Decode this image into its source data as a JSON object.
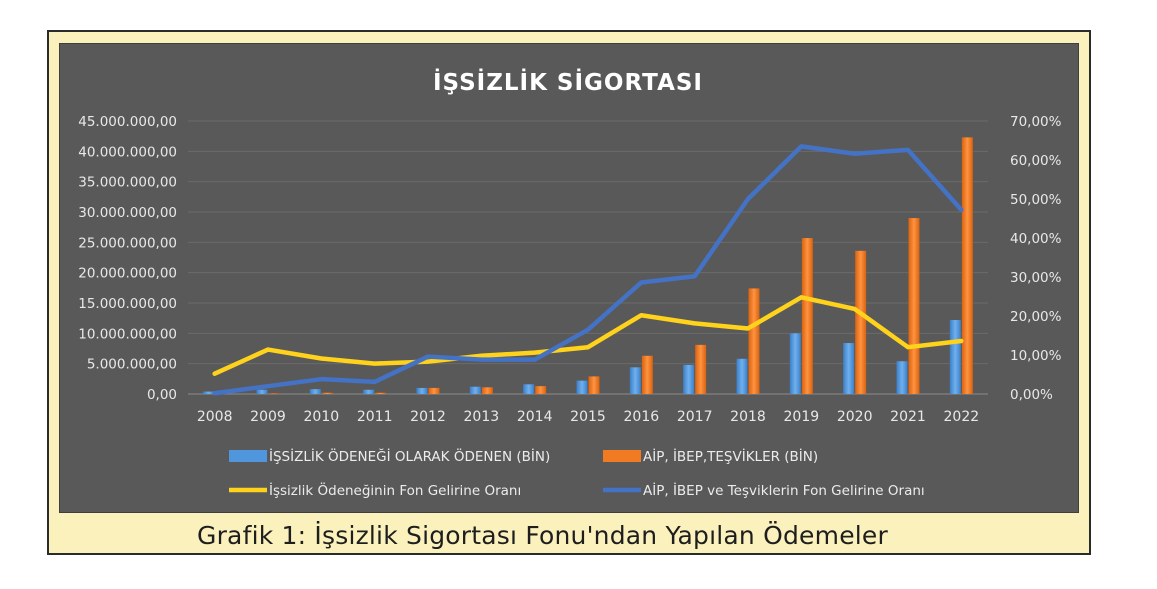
{
  "caption": "Grafik 1: İşsizlik Sigortası Fonu'ndan Yapılan Ödemeler",
  "chart_data": {
    "type": "bar",
    "title": "İŞSİZLİK SİGORTASI",
    "categories": [
      "2008",
      "2009",
      "2010",
      "2011",
      "2012",
      "2013",
      "2014",
      "2015",
      "2016",
      "2017",
      "2018",
      "2019",
      "2020",
      "2021",
      "2022"
    ],
    "y_left": {
      "ylim": [
        0,
        45000000
      ],
      "ticks": [
        "0,00",
        "5.000.000,00",
        "10.000.000,00",
        "15.000.000,00",
        "20.000.000,00",
        "25.000.000,00",
        "30.000.000,00",
        "35.000.000,00",
        "40.000.000,00",
        "45.000.000,00"
      ]
    },
    "y_right": {
      "ylim": [
        0,
        70
      ],
      "ticks": [
        "0,00%",
        "10,00%",
        "20,00%",
        "30,00%",
        "40,00%",
        "50,00%",
        "60,00%",
        "70,00%"
      ]
    },
    "series": [
      {
        "name": "İŞSİZLİK ÖDENEĞİ OLARAK ÖDENEN (BİN)",
        "type": "bar",
        "axis": "left",
        "color": "#4f96dd",
        "values": [
          400000,
          700000,
          800000,
          700000,
          1000000,
          1200000,
          1600000,
          2200000,
          4400000,
          4800000,
          5800000,
          10000000,
          8400000,
          5400000,
          12200000
        ]
      },
      {
        "name": "AİP, İBEP,TEŞVİKLER (BİN)",
        "type": "bar",
        "axis": "left",
        "color": "#f07b22",
        "values": [
          0,
          100000,
          200000,
          200000,
          1000000,
          1100000,
          1300000,
          2900000,
          6300000,
          8100000,
          17400000,
          25700000,
          23600000,
          29000000,
          42300000
        ]
      },
      {
        "name": "İşsizlik Ödeneğinin Fon Gelirine Oranı",
        "type": "line",
        "axis": "right",
        "color": "#ffd21c",
        "values": [
          5.2,
          11.4,
          9.1,
          7.8,
          8.3,
          9.8,
          10.6,
          12.0,
          20.2,
          18.1,
          16.8,
          24.8,
          21.8,
          12.0,
          13.6
        ]
      },
      {
        "name": "AİP, İBEP ve Teşviklerin Fon Gelirine Oranı",
        "type": "line",
        "axis": "right",
        "color": "#4472c4",
        "values": [
          0.2,
          2.0,
          3.8,
          3.1,
          9.6,
          8.8,
          8.8,
          16.5,
          28.6,
          30.2,
          50.0,
          63.5,
          61.6,
          62.6,
          47.2
        ]
      }
    ],
    "legend_position": "bottom",
    "grid": true
  }
}
